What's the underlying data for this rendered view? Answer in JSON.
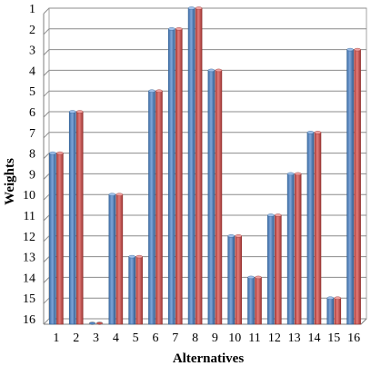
{
  "chart_data": {
    "type": "bar",
    "title": "",
    "xlabel": "Alternatives",
    "ylabel": "Weights",
    "y_axis_reversed": true,
    "ylim": [
      1,
      16
    ],
    "yticks": [
      1,
      2,
      3,
      4,
      5,
      6,
      7,
      8,
      9,
      10,
      11,
      12,
      13,
      14,
      15,
      16
    ],
    "categories": [
      "1",
      "2",
      "3",
      "4",
      "5",
      "6",
      "7",
      "8",
      "9",
      "10",
      "11",
      "12",
      "13",
      "14",
      "15",
      "16"
    ],
    "series": [
      {
        "color": "#4f81bd",
        "values": [
          8,
          6,
          16,
          10,
          13,
          5,
          2,
          1,
          4,
          12,
          14,
          11,
          9,
          7,
          15,
          3
        ]
      },
      {
        "color": "#c0504d",
        "values": [
          8,
          6,
          16,
          10,
          13,
          5,
          2,
          1,
          4,
          12,
          14,
          11,
          9,
          7,
          15,
          3
        ]
      }
    ],
    "grid": true,
    "legend": "none",
    "style": "3d-cylinder-like bars"
  }
}
